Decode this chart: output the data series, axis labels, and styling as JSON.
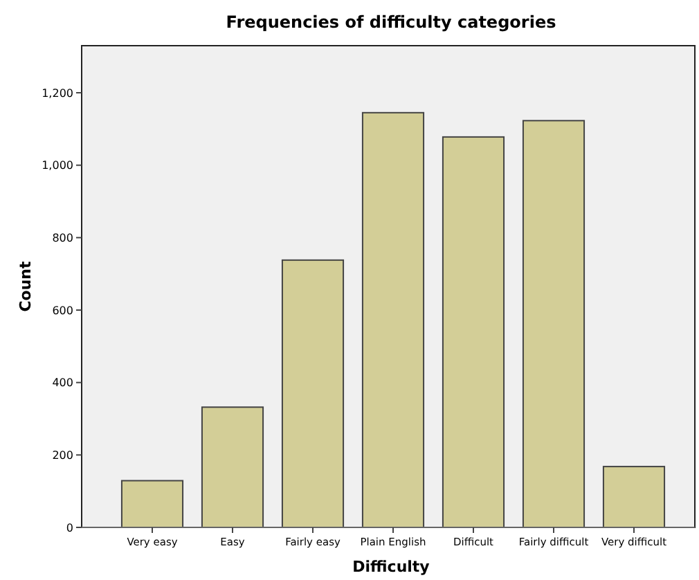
{
  "chart_data": {
    "type": "bar",
    "title": "Frequencies of difficulty categories",
    "xlabel": "Difficulty",
    "ylabel": "Count",
    "categories": [
      "Very easy",
      "Easy",
      "Fairly easy",
      "Plain English",
      "Difficult",
      "Fairly difficult",
      "Very difficult"
    ],
    "values": [
      129,
      332,
      738,
      1145,
      1078,
      1123,
      168
    ],
    "color": "#d3ce97",
    "ylim": [
      0,
      1330
    ],
    "yticks": [
      {
        "value": 0,
        "label": "0"
      },
      {
        "value": 200,
        "label": "200"
      },
      {
        "value": 400,
        "label": "400"
      },
      {
        "value": 600,
        "label": "600"
      },
      {
        "value": 800,
        "label": "800"
      },
      {
        "value": 1000,
        "label": "1,000"
      },
      {
        "value": 1200,
        "label": "1,200"
      }
    ],
    "grid": false
  }
}
